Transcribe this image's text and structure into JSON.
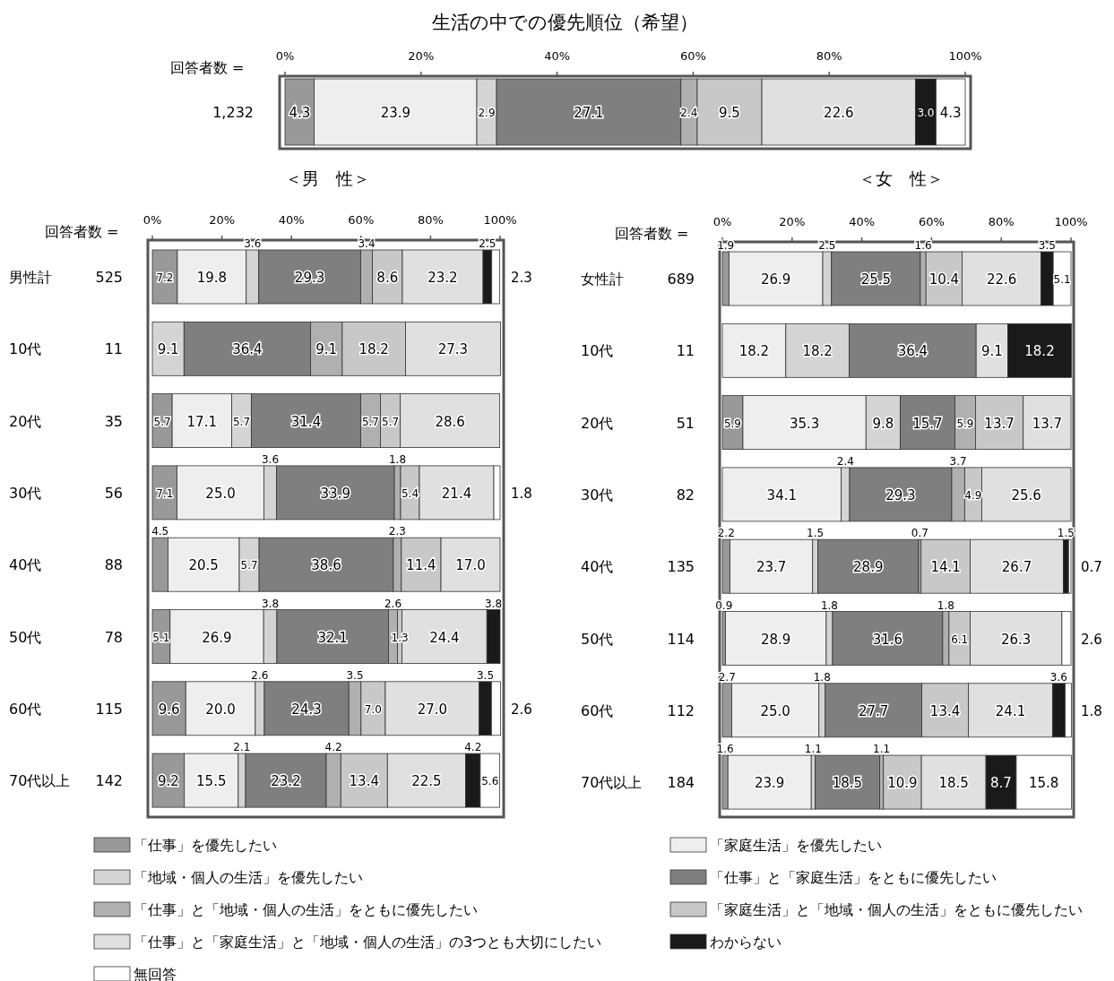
{
  "chart_data": [
    {
      "type": "bar",
      "orientation": "horizontal",
      "stacked": true,
      "title": "生活の中での優先順位（希望）",
      "categories": [
        null
      ],
      "xlim": [
        0,
        100
      ],
      "xticks": [
        {
          "value": 0,
          "label": "0%"
        },
        {
          "value": 20,
          "label": "20%"
        },
        {
          "value": 40,
          "label": "40%"
        },
        {
          "value": 60,
          "label": "60%"
        },
        {
          "value": 80,
          "label": "80%"
        },
        {
          "value": 100,
          "label": "100%"
        }
      ],
      "legend": "bottom",
      "annotations": [
        "回答者数 =",
        "1,232"
      ],
      "series": [
        {
          "name": "「仕事」を優先したい",
          "color": "#999999",
          "values": [
            4.3
          ],
          "value_labels": [
            "4.3"
          ]
        },
        {
          "name": "「家庭生活」を優先したい",
          "color": "#eeeeee",
          "values": [
            23.9
          ],
          "value_labels": [
            "23.9"
          ]
        },
        {
          "name": "「地域・個人の生活」を優先したい",
          "color": "#d4d4d4",
          "values": [
            2.9
          ],
          "value_labels": [
            "2.9"
          ]
        },
        {
          "name": "「仕事」と「家庭生活」をともに優先したい",
          "color": "#7f7f7f",
          "values": [
            27.1
          ],
          "value_labels": [
            "27.1"
          ]
        },
        {
          "name": "「仕事」と「地域・個人の生活」をともに優先したい",
          "color": "#b0b0b0",
          "values": [
            2.4
          ],
          "value_labels": [
            "2.4"
          ]
        },
        {
          "name": "「家庭生活」と「地域・個人の生活」をともに優先したい",
          "color": "#c8c8c8",
          "values": [
            9.5
          ],
          "value_labels": [
            "9.5"
          ]
        },
        {
          "name": "「仕事」と「家庭生活」と「地域・個人の生活」の3つとも大切にしたい",
          "color": "#e0e0e0",
          "values": [
            22.6
          ],
          "value_labels": [
            "22.6"
          ]
        },
        {
          "name": "わからない",
          "color": "#1a1a1a",
          "values": [
            3.0
          ],
          "value_labels": [
            "3.0"
          ]
        },
        {
          "name": "無回答",
          "color": "#ffffff",
          "values": [
            4.3
          ],
          "value_labels": [
            "4.3"
          ]
        }
      ]
    },
    {
      "type": "bar",
      "orientation": "horizontal",
      "stacked": true,
      "title": "＜男　性＞",
      "categories": [
        "男性計",
        "10代",
        "20代",
        "30代",
        "40代",
        "50代",
        "60代",
        "70代以上"
      ],
      "xlim": [
        0,
        100
      ],
      "xticks": [
        {
          "value": 0,
          "label": "0%"
        },
        {
          "value": 20,
          "label": "20%"
        },
        {
          "value": 40,
          "label": "40%"
        },
        {
          "value": 60,
          "label": "60%"
        },
        {
          "value": 80,
          "label": "80%"
        },
        {
          "value": 100,
          "label": "100%"
        }
      ],
      "annotations": [
        "回答者数 =",
        "525",
        "11",
        "35",
        "56",
        "88",
        "78",
        "115",
        "142"
      ],
      "series": [
        {
          "color": "#999999",
          "values": [
            7.2,
            null,
            5.7,
            7.1,
            4.5,
            5.1,
            9.6,
            9.2
          ],
          "value_labels": [
            "7.2",
            null,
            "5.7",
            "7.1",
            "4.5",
            "5.1",
            "9.6",
            "9.2"
          ]
        },
        {
          "color": "#eeeeee",
          "values": [
            19.8,
            null,
            17.1,
            25.0,
            20.5,
            26.9,
            20.0,
            15.5
          ],
          "value_labels": [
            "19.8",
            null,
            "17.1",
            "25.0",
            "20.5",
            "26.9",
            "20.0",
            "15.5"
          ]
        },
        {
          "color": "#d4d4d4",
          "values": [
            3.6,
            9.1,
            5.7,
            3.6,
            5.7,
            3.8,
            2.6,
            2.1
          ],
          "value_labels": [
            "3.6",
            "9.1",
            "5.7",
            "3.6",
            "5.7",
            "3.8",
            "2.6",
            "2.1"
          ]
        },
        {
          "color": "#7f7f7f",
          "values": [
            29.3,
            36.4,
            31.4,
            33.9,
            38.6,
            32.1,
            24.3,
            23.2
          ],
          "value_labels": [
            "29.3",
            "36.4",
            "31.4",
            "33.9",
            "38.6",
            "32.1",
            "24.3",
            "23.2"
          ]
        },
        {
          "color": "#b0b0b0",
          "values": [
            3.4,
            9.1,
            5.7,
            1.8,
            2.3,
            2.6,
            3.5,
            4.2
          ],
          "value_labels": [
            "3.4",
            "9.1",
            "5.7",
            "1.8",
            "2.3",
            "2.6",
            "3.5",
            "4.2"
          ]
        },
        {
          "color": "#c8c8c8",
          "values": [
            8.6,
            18.2,
            5.7,
            5.4,
            11.4,
            1.3,
            7.0,
            13.4
          ],
          "value_labels": [
            "8.6",
            "18.2",
            "5.7",
            "5.4",
            "11.4",
            "1.3",
            "7.0",
            "13.4"
          ]
        },
        {
          "color": "#e0e0e0",
          "values": [
            23.2,
            27.3,
            28.6,
            21.4,
            17.0,
            24.4,
            27.0,
            22.5
          ],
          "value_labels": [
            "23.2",
            "27.3",
            "28.6",
            "21.4",
            "17.0",
            "24.4",
            "27.0",
            "22.5"
          ]
        },
        {
          "color": "#1a1a1a",
          "values": [
            2.5,
            null,
            null,
            null,
            null,
            3.8,
            3.5,
            4.2
          ],
          "value_labels": [
            "2.5",
            null,
            null,
            null,
            null,
            "3.8",
            "3.5",
            "4.2"
          ]
        },
        {
          "color": "#ffffff",
          "values": [
            2.3,
            null,
            null,
            1.8,
            null,
            null,
            2.6,
            5.6
          ],
          "value_labels": [
            "2.3",
            null,
            null,
            "1.8",
            null,
            null,
            "2.6",
            "5.6"
          ]
        }
      ]
    },
    {
      "type": "bar",
      "orientation": "horizontal",
      "stacked": true,
      "title": "＜女　性＞",
      "categories": [
        "女性計",
        "10代",
        "20代",
        "30代",
        "40代",
        "50代",
        "60代",
        "70代以上"
      ],
      "xlim": [
        0,
        100
      ],
      "xticks": [
        {
          "value": 0,
          "label": "0%"
        },
        {
          "value": 20,
          "label": "20%"
        },
        {
          "value": 40,
          "label": "40%"
        },
        {
          "value": 60,
          "label": "60%"
        },
        {
          "value": 80,
          "label": "80%"
        },
        {
          "value": 100,
          "label": "100%"
        }
      ],
      "annotations": [
        "回答者数 =",
        "689",
        "11",
        "51",
        "82",
        "135",
        "114",
        "112",
        "184"
      ],
      "series": [
        {
          "color": "#999999",
          "values": [
            1.9,
            null,
            5.9,
            null,
            2.2,
            0.9,
            2.7,
            1.6
          ],
          "value_labels": [
            "1.9",
            null,
            "5.9",
            null,
            "2.2",
            "0.9",
            "2.7",
            "1.6"
          ]
        },
        {
          "color": "#eeeeee",
          "values": [
            26.9,
            18.2,
            35.3,
            34.1,
            23.7,
            28.9,
            25.0,
            23.9
          ],
          "value_labels": [
            "26.9",
            "18.2",
            "35.3",
            "34.1",
            "23.7",
            "28.9",
            "25.0",
            "23.9"
          ]
        },
        {
          "color": "#d4d4d4",
          "values": [
            2.5,
            18.2,
            9.8,
            2.4,
            1.5,
            1.8,
            1.8,
            1.1
          ],
          "value_labels": [
            "2.5",
            "18.2",
            "9.8",
            "2.4",
            "1.5",
            "1.8",
            "1.8",
            "1.1"
          ]
        },
        {
          "color": "#7f7f7f",
          "values": [
            25.5,
            36.4,
            15.7,
            29.3,
            28.9,
            31.6,
            27.7,
            18.5
          ],
          "value_labels": [
            "25.5",
            "36.4",
            "15.7",
            "29.3",
            "28.9",
            "31.6",
            "27.7",
            "18.5"
          ]
        },
        {
          "color": "#b0b0b0",
          "values": [
            1.6,
            null,
            5.9,
            3.7,
            0.7,
            1.8,
            null,
            1.1
          ],
          "value_labels": [
            "1.6",
            null,
            "5.9",
            "3.7",
            "0.7",
            "1.8",
            null,
            "1.1"
          ]
        },
        {
          "color": "#c8c8c8",
          "values": [
            10.4,
            null,
            13.7,
            4.9,
            14.1,
            6.1,
            13.4,
            10.9
          ],
          "value_labels": [
            "10.4",
            null,
            "13.7",
            "4.9",
            "14.1",
            "6.1",
            "13.4",
            "10.9"
          ]
        },
        {
          "color": "#e0e0e0",
          "values": [
            22.6,
            9.1,
            13.7,
            25.6,
            26.7,
            26.3,
            24.1,
            18.5
          ],
          "value_labels": [
            "22.6",
            "9.1",
            "13.7",
            "25.6",
            "26.7",
            "26.3",
            "24.1",
            "18.5"
          ]
        },
        {
          "color": "#1a1a1a",
          "values": [
            3.5,
            18.2,
            null,
            null,
            1.5,
            null,
            3.6,
            8.7
          ],
          "value_labels": [
            "3.5",
            "18.2",
            null,
            null,
            "1.5",
            null,
            "3.6",
            "8.7"
          ]
        },
        {
          "color": "#ffffff",
          "values": [
            5.1,
            null,
            null,
            null,
            0.7,
            2.6,
            1.8,
            15.8
          ],
          "value_labels": [
            "5.1",
            null,
            null,
            null,
            "0.7",
            "2.6",
            "1.8",
            "15.8"
          ]
        }
      ]
    }
  ]
}
